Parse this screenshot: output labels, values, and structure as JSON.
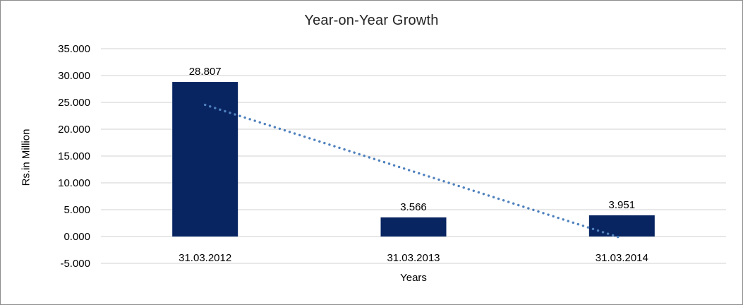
{
  "chart_data": {
    "type": "bar",
    "title": "Year-on-Year Growth",
    "xlabel": "Years",
    "ylabel": "Rs.in Million",
    "categories": [
      "31.03.2012",
      "31.03.2013",
      "31.03.2014"
    ],
    "values": [
      28.807,
      3.566,
      3.951
    ],
    "data_labels": [
      "28.807",
      "3.566",
      "3.951"
    ],
    "ylim": [
      -5,
      35
    ],
    "yticks": [
      35,
      30,
      25,
      20,
      15,
      10,
      5,
      0,
      -5
    ],
    "ytick_labels": [
      "35.000",
      "30.000",
      "25.000",
      "20.000",
      "15.000",
      "10.000",
      "5.000",
      "0.000",
      "-5.000"
    ],
    "grid": true,
    "legend": "none",
    "trendline": {
      "type": "linear",
      "style": "dotted",
      "start_value": 24.536,
      "end_value": -0.32
    },
    "colors": {
      "bar": "#082562",
      "trendline": "#4F81BD",
      "gridline": "#D9D9D9",
      "text": "#000000",
      "title": "#262626",
      "background": "#FFFFFF",
      "border": "#8C8C8C"
    }
  }
}
